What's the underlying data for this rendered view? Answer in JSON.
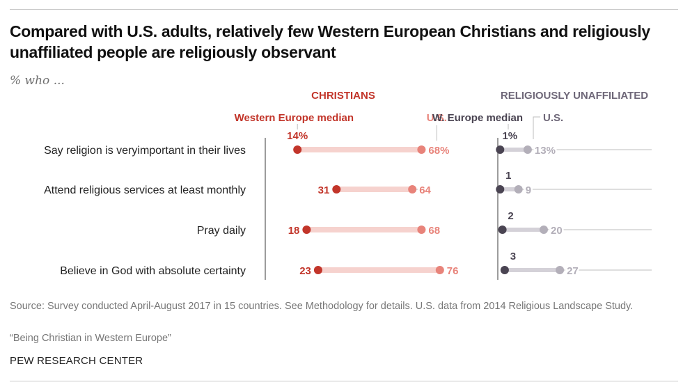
{
  "title": "Compared with U.S. adults, relatively few Western European Christians and religiously unaffiliated people are religiously observant",
  "subtitle": "% who ...",
  "footer": {
    "source": "Source: Survey conducted April-August 2017 in 15 countries. See Methodology for details. U.S. data from 2014 Religious Landscape Study.",
    "note": "“Being Christian in Western Europe”",
    "brand": "PEW RESEARCH CENTER"
  },
  "colors": {
    "christians_we": "#c2352a",
    "christians_us": "#e8837a",
    "christians_bar": "#f6d2ce",
    "christians_header": "#c2352a",
    "unaffiliated_we": "#4a4452",
    "unaffiliated_us": "#b3afb9",
    "unaffiliated_bar": "#d4d1d8",
    "unaffiliated_header": "#6e6778",
    "axis": "#5a5a5a",
    "guide": "#bdbdbd"
  },
  "chart_data": {
    "type": "dot-plot",
    "categories": [
      "Say religion is veryimportant in their lives",
      "Attend religious services at least monthly",
      "Pray daily",
      "Believe in God with absolute certainty"
    ],
    "unit": "%",
    "panels": [
      {
        "header": "CHRISTIANS",
        "legend_we": "Western Europe median",
        "legend_us": "U.S.",
        "xlim": [
          0,
          100
        ],
        "series": [
          {
            "name": "Western Europe median",
            "values": [
              14,
              31,
              18,
              23
            ]
          },
          {
            "name": "U.S.",
            "values": [
              68,
              64,
              68,
              76
            ]
          }
        ]
      },
      {
        "header": "RELIGIOUSLY UNAFFILIATED",
        "legend_we": "W. Europe median",
        "legend_us": "U.S.",
        "xlim": [
          0,
          100
        ],
        "series": [
          {
            "name": "W. Europe median",
            "values": [
              1,
              1,
              2,
              3
            ]
          },
          {
            "name": "U.S.",
            "values": [
              13,
              9,
              20,
              27
            ]
          }
        ]
      }
    ]
  }
}
